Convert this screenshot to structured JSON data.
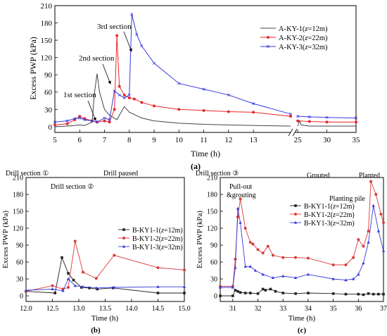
{
  "chart_data": [
    {
      "type": "line",
      "panel_label": "(a)",
      "xlabel": "Time (h)",
      "ylabel": "Excess PWP (kPa)",
      "xlim": [
        5,
        35
      ],
      "ylim": [
        -10,
        210
      ],
      "x_axis_break": [
        14.5,
        24.5
      ],
      "xticks": [
        5,
        6,
        7,
        8,
        9,
        10,
        11,
        12,
        13,
        25,
        30,
        35
      ],
      "yticks": [
        0,
        30,
        60,
        90,
        120,
        150,
        180,
        210
      ],
      "legend_position": "top-right",
      "annotations": [
        "1st section",
        "2nd section",
        "3rd section"
      ],
      "series": [
        {
          "name": "A-KY-1(z=12m)",
          "name_var": "z",
          "name_rest": "=12m)",
          "name_prefix": "A-KY-1(",
          "color": "#444444",
          "marker": "none",
          "x": [
            5,
            5.5,
            5.8,
            6.0,
            6.2,
            6.5,
            6.6,
            6.7,
            6.8,
            7.0,
            7.2,
            7.5,
            7.6,
            7.8,
            8.0,
            8.5,
            9.0,
            10.0,
            11.0,
            12.0,
            13.0,
            14.5,
            25.0,
            25.3,
            25.6,
            27,
            30,
            35
          ],
          "y": [
            0,
            1,
            2,
            3,
            2,
            8,
            60,
            92,
            60,
            30,
            20,
            12,
            20,
            35,
            25,
            15,
            10,
            6,
            4,
            3,
            2,
            1,
            1,
            10,
            3,
            1,
            1,
            1
          ]
        },
        {
          "name": "A-KY-2(z=22m)",
          "name_var": "z",
          "name_rest": "=22m)",
          "name_prefix": "A-KY-2(",
          "color": "#e8262a",
          "marker": "o",
          "x": [
            5,
            5.5,
            5.8,
            6.0,
            6.2,
            6.5,
            6.7,
            7.0,
            7.2,
            7.4,
            7.5,
            7.6,
            7.8,
            8.0,
            8.2,
            8.5,
            9.0,
            10.0,
            11.0,
            12.0,
            13.0,
            14.5,
            25.0,
            27,
            30,
            35
          ],
          "y": [
            3,
            5,
            12,
            18,
            14,
            10,
            8,
            10,
            8,
            30,
            158,
            70,
            55,
            50,
            48,
            42,
            36,
            30,
            28,
            26,
            25,
            18,
            10,
            9,
            8,
            8
          ]
        },
        {
          "name": "A-KY-3(z=32m)",
          "name_var": "z",
          "name_rest": "=32m)",
          "name_prefix": "A-KY-3(",
          "color": "#3a3adf",
          "marker": "x",
          "x": [
            5,
            5.5,
            5.8,
            6.0,
            6.2,
            6.5,
            6.7,
            7.0,
            7.2,
            7.4,
            7.6,
            7.8,
            8.0,
            8.1,
            8.3,
            8.5,
            9.0,
            10.0,
            11.0,
            12.0,
            13.0,
            14.5,
            25.0,
            27,
            30,
            35
          ],
          "y": [
            8,
            10,
            14,
            15,
            12,
            10,
            8,
            15,
            12,
            62,
            55,
            50,
            55,
            195,
            160,
            140,
            110,
            75,
            65,
            55,
            40,
            22,
            18,
            17,
            16,
            15
          ]
        }
      ]
    },
    {
      "type": "line",
      "panel_label": "(b)",
      "xlabel": "Time (h)",
      "ylabel": "Excess PWP (kPa)",
      "xlim": [
        12.0,
        15.0
      ],
      "ylim": [
        -10,
        210
      ],
      "xticks": [
        "12.0",
        "12.5",
        "13.0",
        "13.5",
        "14.0",
        "14.5",
        "15.0"
      ],
      "yticks": [
        0,
        30,
        60,
        90,
        120,
        150,
        180,
        210
      ],
      "legend_position": "center-right",
      "annotations": [
        "Drill section ①",
        "Drill paused",
        "Drill section ②"
      ],
      "series": [
        {
          "name": "B-KY1-1(z=12m)",
          "name_prefix": "B-KY1-1(",
          "name_var": "z",
          "name_rest": "=12m)",
          "color": "#222222",
          "marker": "s",
          "x": [
            12.0,
            12.55,
            12.68,
            12.8,
            12.9,
            13.05,
            13.2,
            13.35,
            13.65,
            14.5,
            15.0
          ],
          "y": [
            8,
            5,
            68,
            40,
            28,
            15,
            14,
            12,
            14,
            5,
            5
          ]
        },
        {
          "name": "B-KY1-2(z=22m)",
          "name_prefix": "B-KY1-2(",
          "name_var": "z",
          "name_rest": "=22m)",
          "color": "#d93a3a",
          "marker": "o",
          "x": [
            12.0,
            12.5,
            12.7,
            12.8,
            12.93,
            13.08,
            13.33,
            13.67,
            14.5,
            15.0
          ],
          "y": [
            8,
            18,
            12,
            15,
            97,
            42,
            31,
            72,
            50,
            46
          ]
        },
        {
          "name": "B-KY1-3(z=32m)",
          "name_prefix": "B-KY1-3(",
          "name_var": "z",
          "name_rest": "=32m)",
          "color": "#3b3bd9",
          "marker": "^",
          "x": [
            12.0,
            12.5,
            12.7,
            12.8,
            12.93,
            13.08,
            13.33,
            13.67,
            14.5,
            15.0
          ],
          "y": [
            10,
            12,
            9,
            30,
            18,
            16,
            14,
            15,
            16,
            16
          ]
        }
      ]
    },
    {
      "type": "line",
      "panel_label": "(c)",
      "xlabel": "Time (h)",
      "ylabel": "Excess PWP (kPa)",
      "xlim": [
        30.5,
        37.0
      ],
      "ylim": [
        -10,
        210
      ],
      "xticks": [
        31,
        32,
        33,
        34,
        35,
        36,
        37
      ],
      "yticks": [
        0,
        30,
        60,
        90,
        120,
        150,
        180,
        210
      ],
      "legend_position": "top-center",
      "annotations": [
        "Drill section ③",
        "Grouted",
        "Planted",
        "Pull-out",
        "&grouting",
        "Planting pile"
      ],
      "series": [
        {
          "name": "B-KY1-1(z=12m)",
          "name_prefix": "B-KY1-1(",
          "name_var": "z",
          "name_rest": "=12m)",
          "color": "#222222",
          "marker": "s",
          "x": [
            30.5,
            31.0,
            31.1,
            31.2,
            31.3,
            31.5,
            31.7,
            32.0,
            32.2,
            32.3,
            32.5,
            32.7,
            33.0,
            33.5,
            34.0,
            35.0,
            35.5,
            36.0,
            36.2,
            36.4,
            36.6,
            36.8,
            37.0
          ],
          "y": [
            0,
            0,
            10,
            8,
            6,
            5,
            5,
            4,
            12,
            10,
            12,
            8,
            5,
            4,
            5,
            4,
            3,
            3,
            2,
            4,
            3,
            3,
            3
          ]
        },
        {
          "name": "B-KY1-2(z=22m)",
          "name_prefix": "B-KY1-2(",
          "name_var": "z",
          "name_rest": "=22m)",
          "color": "#d93a3a",
          "marker": "o",
          "x": [
            30.5,
            31.0,
            31.1,
            31.2,
            31.3,
            31.5,
            31.7,
            31.8,
            32.0,
            32.2,
            32.4,
            32.6,
            33.0,
            33.5,
            34.0,
            35.0,
            35.5,
            35.8,
            36.0,
            36.2,
            36.4,
            36.5,
            36.7,
            36.9,
            37.0
          ],
          "y": [
            17,
            17,
            65,
            140,
            172,
            120,
            95,
            92,
            82,
            76,
            88,
            72,
            68,
            68,
            67,
            55,
            55,
            68,
            100,
            88,
            115,
            203,
            180,
            145,
            130
          ]
        },
        {
          "name": "B-KY1-3(z=32m)",
          "name_prefix": "B-KY1-3(",
          "name_var": "z",
          "name_rest": "=32m)",
          "color": "#3b3bd9",
          "marker": "^",
          "x": [
            30.5,
            31.0,
            31.1,
            31.2,
            31.3,
            31.5,
            31.7,
            31.9,
            32.2,
            32.6,
            33.0,
            33.5,
            34.0,
            35.0,
            35.5,
            35.8,
            36.0,
            36.2,
            36.4,
            36.6,
            36.8,
            37.0
          ],
          "y": [
            15,
            15,
            50,
            155,
            130,
            52,
            52,
            45,
            38,
            32,
            35,
            32,
            38,
            30,
            28,
            30,
            38,
            58,
            95,
            160,
            115,
            80
          ]
        }
      ]
    }
  ]
}
